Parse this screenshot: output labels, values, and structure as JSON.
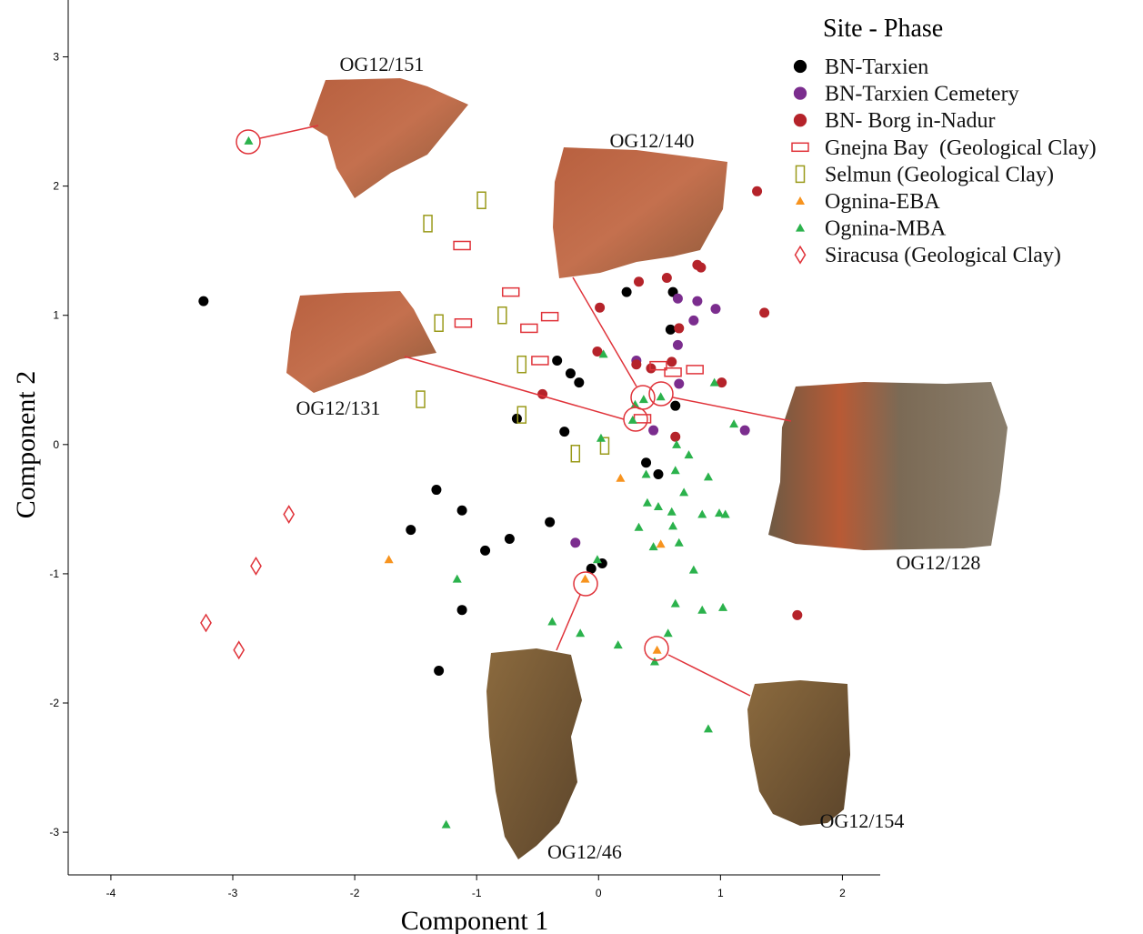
{
  "chart_data": {
    "type": "scatter",
    "x_label": "Component 1",
    "y_label": "Component 2",
    "legend_title": "Site - Phase",
    "legend_position": "top-right",
    "xlim": [
      -4.35,
      2.31
    ],
    "ylim": [
      -3.33,
      3.44
    ],
    "xticks": [
      -4,
      -3,
      -2,
      -1,
      0,
      1,
      2
    ],
    "yticks": [
      -3,
      -2,
      -1,
      0,
      1,
      2,
      3
    ],
    "annotations": [
      "OG12/151",
      "OG12/140",
      "OG12/131",
      "OG12/128",
      "OG12/46",
      "OG12/154"
    ],
    "series": [
      {
        "name": "BN-Tarxien",
        "color": "#000000",
        "marker": "circle",
        "x": [
          -3.24,
          -0.34,
          -0.23,
          -0.16,
          -0.67,
          -0.28,
          0.23,
          0.61,
          0.59,
          0.63,
          0.39,
          0.49,
          -1.33,
          -1.12,
          -1.54,
          -0.93,
          -0.73,
          -0.4,
          -0.06,
          0.03,
          -1.12,
          -1.31
        ],
        "y": [
          1.11,
          0.65,
          0.55,
          0.48,
          0.2,
          0.1,
          1.18,
          1.18,
          0.89,
          0.3,
          -0.14,
          -0.23,
          -0.35,
          -0.51,
          -0.66,
          -0.82,
          -0.73,
          -0.6,
          -0.96,
          -0.92,
          -1.28,
          -1.75
        ]
      },
      {
        "name": "BN-Tarxien Cemetery",
        "color": "#7b2d8e",
        "marker": "circle",
        "x": [
          0.65,
          0.81,
          0.96,
          0.78,
          0.65,
          0.31,
          0.66,
          0.45,
          1.2,
          -0.19
        ],
        "y": [
          1.13,
          1.11,
          1.05,
          0.96,
          0.77,
          0.65,
          0.47,
          0.11,
          0.11,
          -0.76
        ]
      },
      {
        "name": "BN- Borg in-Nadur",
        "color": "#b5232a",
        "marker": "circle",
        "x": [
          1.3,
          0.81,
          0.84,
          0.56,
          0.33,
          0.01,
          1.36,
          0.66,
          -0.01,
          0.31,
          0.43,
          0.6,
          1.01,
          -0.46,
          0.63,
          1.63
        ],
        "y": [
          1.96,
          1.39,
          1.37,
          1.29,
          1.26,
          1.06,
          1.02,
          0.9,
          0.72,
          0.62,
          0.59,
          0.64,
          0.48,
          0.39,
          0.06,
          -1.32
        ]
      },
      {
        "name": "Gnejna Bay  (Geological Clay)",
        "color": "#e0333a",
        "marker": "rect-wide",
        "x": [
          -1.12,
          -0.72,
          -1.11,
          -0.57,
          -0.4,
          -0.48,
          0.49,
          0.61,
          0.79,
          0.36
        ],
        "y": [
          1.54,
          1.18,
          0.94,
          0.9,
          0.99,
          0.65,
          0.61,
          0.56,
          0.58,
          0.2
        ]
      },
      {
        "name": "Selmun (Geological Clay)",
        "color": "#9a9a1a",
        "marker": "rect-tall",
        "x": [
          -0.96,
          -1.4,
          -1.31,
          -0.79,
          -0.63,
          -1.46,
          -0.63,
          0.05,
          -0.19
        ],
        "y": [
          1.89,
          1.71,
          0.94,
          1.0,
          0.62,
          0.35,
          0.23,
          -0.01,
          -0.07
        ]
      },
      {
        "name": "Ognina-EBA",
        "color": "#f7931e",
        "marker": "triangle",
        "x": [
          -1.72,
          0.18,
          0.51,
          -0.11,
          0.48
        ],
        "y": [
          -0.89,
          -0.26,
          -0.77,
          -1.04,
          -1.59
        ]
      },
      {
        "name": "Ognina-MBA",
        "color": "#2bb24c",
        "marker": "triangle",
        "x": [
          -2.87,
          0.04,
          0.37,
          0.51,
          0.28,
          0.3,
          0.95,
          1.11,
          0.02,
          0.64,
          0.74,
          0.39,
          0.63,
          0.9,
          0.7,
          0.4,
          0.49,
          0.6,
          0.33,
          0.85,
          0.99,
          1.04,
          0.61,
          0.45,
          0.66,
          0.78,
          -0.01,
          -1.16,
          0.63,
          0.85,
          1.02,
          -0.38,
          -0.15,
          0.16,
          0.57,
          0.46,
          0.9,
          -1.25
        ],
        "y": [
          2.35,
          0.7,
          0.35,
          0.37,
          0.19,
          0.31,
          0.48,
          0.16,
          0.05,
          0.0,
          -0.08,
          -0.23,
          -0.2,
          -0.25,
          -0.37,
          -0.45,
          -0.48,
          -0.52,
          -0.64,
          -0.54,
          -0.53,
          -0.54,
          -0.63,
          -0.79,
          -0.76,
          -0.97,
          -0.89,
          -1.04,
          -1.23,
          -1.28,
          -1.26,
          -1.37,
          -1.46,
          -1.55,
          -1.46,
          -1.68,
          -2.2,
          -2.94
        ]
      },
      {
        "name": "Siracusa (Geological Clay)",
        "color": "#e0333a",
        "marker": "diamond",
        "x": [
          -2.54,
          -2.81,
          -3.22,
          -2.95
        ],
        "y": [
          -0.54,
          -0.94,
          -1.38,
          -1.59
        ]
      }
    ]
  }
}
